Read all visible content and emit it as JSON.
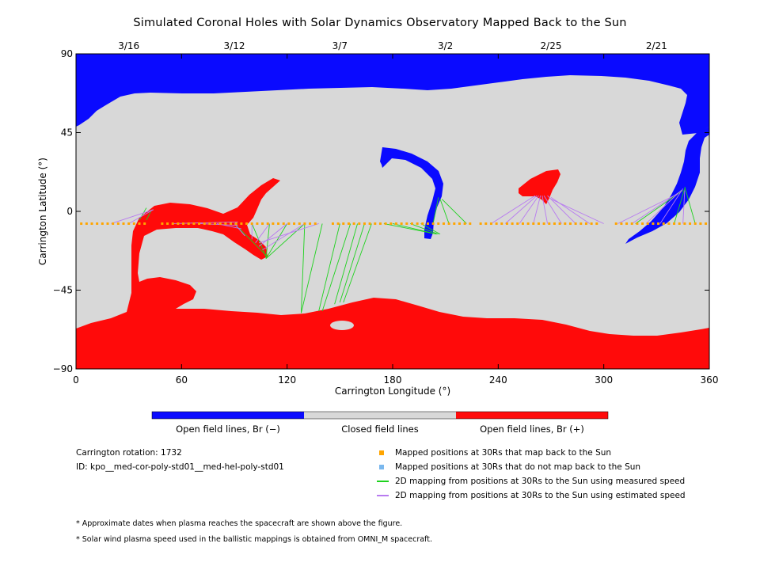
{
  "title": "Simulated Coronal Holes with Solar Dynamics Observatory Mapped Back to the Sun",
  "colors": {
    "open_negative": "#0a0aff",
    "closed": "#d8d8d8",
    "open_positive": "#ff0a0a",
    "mapped_orange": "#ffa500",
    "unmapped_blue": "#7ab8ee",
    "measured_green": "#1ed21e",
    "estimated_purple": "#b87bf0"
  },
  "chart_data": {
    "type": "heatmap",
    "xlabel": "Carrington Longitude (°)",
    "ylabel": "Carrington Latitude (°)",
    "xlim": [
      0,
      360
    ],
    "ylim": [
      -90,
      90
    ],
    "xticks": [
      "0",
      "60",
      "120",
      "180",
      "240",
      "300",
      "360"
    ],
    "yticks": [
      "90",
      "45",
      "0",
      "−45",
      "−90"
    ],
    "top_date_ticks": [
      {
        "lon": 30,
        "label": "3/16"
      },
      {
        "lon": 90,
        "label": "3/12"
      },
      {
        "lon": 150,
        "label": "3/7"
      },
      {
        "lon": 210,
        "label": "3/2"
      },
      {
        "lon": 270,
        "label": "2/25"
      },
      {
        "lon": 330,
        "label": "2/21"
      }
    ],
    "regions": [
      {
        "kind": "open_negative",
        "lon": 0,
        "lat": 90
      },
      {
        "kind": "open_negative",
        "lon": 180,
        "lat": 25
      },
      {
        "kind": "open_negative",
        "lon": 350,
        "lat": 20
      },
      {
        "kind": "open_positive",
        "lon": 60,
        "lat": -60
      },
      {
        "kind": "open_positive",
        "lon": 105,
        "lat": 0
      },
      {
        "kind": "open_positive",
        "lon": 260,
        "lat": 15
      },
      {
        "kind": "closed_island",
        "lon": 150,
        "lat": -65
      }
    ],
    "mapped_points": {
      "lat": -7,
      "lon_segments": [
        [
          3,
          40
        ],
        [
          49,
          138
        ],
        [
          146,
          225
        ],
        [
          230,
          298
        ],
        [
          307,
          360
        ]
      ],
      "spacing": 3
    },
    "field_lines_measured": [
      [
        [
          36,
          -5
        ],
        [
          40,
          2
        ]
      ],
      [
        [
          40,
          -5
        ],
        [
          43,
          1
        ]
      ],
      [
        [
          90,
          -7
        ],
        [
          108,
          -25
        ]
      ],
      [
        [
          100,
          -7
        ],
        [
          108,
          -26
        ]
      ],
      [
        [
          110,
          -7
        ],
        [
          108,
          -27
        ]
      ],
      [
        [
          120,
          -7
        ],
        [
          108,
          -27
        ]
      ],
      [
        [
          130,
          -7
        ],
        [
          108,
          -27
        ]
      ],
      [
        [
          130,
          -7
        ],
        [
          128,
          -58
        ]
      ],
      [
        [
          140,
          -7
        ],
        [
          128,
          -58
        ]
      ],
      [
        [
          150,
          -7
        ],
        [
          138,
          -57
        ]
      ],
      [
        [
          156,
          -7
        ],
        [
          140,
          -57
        ]
      ],
      [
        [
          160,
          -7
        ],
        [
          147,
          -53
        ]
      ],
      [
        [
          164,
          -7
        ],
        [
          150,
          -52
        ]
      ],
      [
        [
          168,
          -7
        ],
        [
          152,
          -52
        ]
      ],
      [
        [
          175,
          -7
        ],
        [
          205,
          -13
        ]
      ],
      [
        [
          180,
          -7
        ],
        [
          205,
          -13
        ]
      ],
      [
        [
          190,
          -7
        ],
        [
          206,
          -13
        ]
      ],
      [
        [
          196,
          -7
        ],
        [
          207,
          -13
        ]
      ],
      [
        [
          203,
          -7
        ],
        [
          206,
          8
        ]
      ],
      [
        [
          212,
          -7
        ],
        [
          207,
          7
        ]
      ],
      [
        [
          222,
          -7
        ],
        [
          208,
          7
        ]
      ],
      [
        [
          318,
          -7
        ],
        [
          345,
          12
        ]
      ],
      [
        [
          340,
          -7
        ],
        [
          346,
          13
        ]
      ],
      [
        [
          352,
          -7
        ],
        [
          346,
          14
        ]
      ]
    ],
    "field_lines_estimated": [
      [
        [
          20,
          -7
        ],
        [
          44,
          1
        ]
      ],
      [
        [
          30,
          -7
        ],
        [
          44,
          1
        ]
      ],
      [
        [
          55,
          -7
        ],
        [
          92,
          -6
        ]
      ],
      [
        [
          70,
          -7
        ],
        [
          92,
          -8
        ]
      ],
      [
        [
          80,
          -7
        ],
        [
          94,
          -10
        ]
      ],
      [
        [
          90,
          -7
        ],
        [
          96,
          -14
        ]
      ],
      [
        [
          100,
          -7
        ],
        [
          100,
          -16
        ]
      ],
      [
        [
          110,
          -7
        ],
        [
          102,
          -18
        ]
      ],
      [
        [
          120,
          -7
        ],
        [
          104,
          -20
        ]
      ],
      [
        [
          130,
          -7
        ],
        [
          106,
          -22
        ]
      ],
      [
        [
          138,
          -7
        ],
        [
          104,
          -18
        ]
      ],
      [
        [
          236,
          -7
        ],
        [
          261,
          9
        ]
      ],
      [
        [
          244,
          -7
        ],
        [
          262,
          9
        ]
      ],
      [
        [
          252,
          -7
        ],
        [
          263,
          9
        ]
      ],
      [
        [
          260,
          -7
        ],
        [
          264,
          9
        ]
      ],
      [
        [
          268,
          -7
        ],
        [
          265,
          9
        ]
      ],
      [
        [
          276,
          -7
        ],
        [
          266,
          9
        ]
      ],
      [
        [
          284,
          -7
        ],
        [
          268,
          9
        ]
      ],
      [
        [
          292,
          -7
        ],
        [
          270,
          8
        ]
      ],
      [
        [
          300,
          -7
        ],
        [
          270,
          7
        ]
      ],
      [
        [
          308,
          -7
        ],
        [
          342,
          10
        ]
      ],
      [
        [
          316,
          -7
        ],
        [
          343,
          11
        ]
      ],
      [
        [
          324,
          -7
        ],
        [
          344,
          12
        ]
      ],
      [
        [
          332,
          -7
        ],
        [
          345,
          13
        ]
      ],
      [
        [
          345,
          -7
        ],
        [
          346,
          12
        ]
      ]
    ]
  },
  "colorbar": {
    "labels": [
      "Open field lines, Br (−)",
      "Closed field lines",
      "Open field lines, Br (+)"
    ]
  },
  "info": {
    "rotation": "Carrington rotation: 1732",
    "id": "ID: kpo__med-cor-poly-std01__med-hel-poly-std01"
  },
  "legend": [
    {
      "kind": "square",
      "color_key": "mapped_orange",
      "label": "Mapped positions at 30Rs that map back to the Sun"
    },
    {
      "kind": "square",
      "color_key": "unmapped_blue",
      "label": "Mapped positions at 30Rs that do not map back to the Sun"
    },
    {
      "kind": "line",
      "color_key": "measured_green",
      "label": "2D mapping from positions at 30Rs to the Sun using measured speed"
    },
    {
      "kind": "line",
      "color_key": "estimated_purple",
      "label": "2D mapping from positions at 30Rs to the Sun using estimated speed"
    }
  ],
  "notes": [
    "* Approximate dates when plasma reaches the spacecraft are shown above the figure.",
    "* Solar wind plasma speed used in the ballistic mappings is obtained from OMNI_M spacecraft."
  ]
}
